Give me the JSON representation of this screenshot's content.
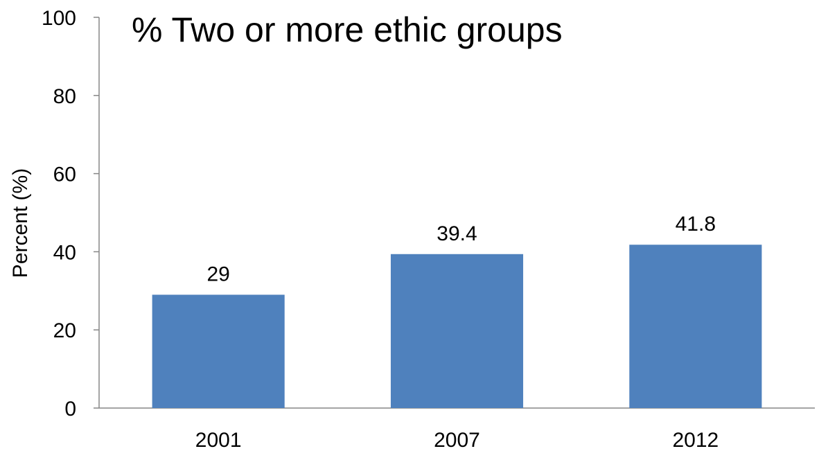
{
  "chart_data": {
    "type": "bar",
    "title": "% Two or more ethic groups",
    "xlabel": "",
    "ylabel": "Percent (%)",
    "categories": [
      "2001",
      "2007",
      "2012"
    ],
    "values": [
      29,
      39.4,
      41.8
    ],
    "data_labels": [
      "29",
      "39.4",
      "41.8"
    ],
    "ylim": [
      0,
      100
    ],
    "yticks": [
      0,
      20,
      40,
      60,
      80,
      100
    ],
    "grid": false,
    "legend": "none",
    "bar_color": "#4F81BD"
  }
}
